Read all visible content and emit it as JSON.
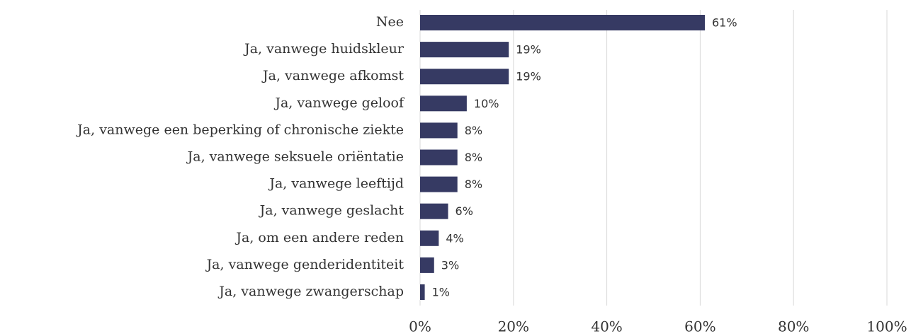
{
  "chart_data": {
    "type": "hbar",
    "categories": [
      "Nee",
      "Ja, vanwege huidskleur",
      "Ja, vanwege afkomst",
      "Ja, vanwege geloof",
      "Ja, vanwege een beperking of chronische ziekte",
      "Ja, vanwege seksuele oriëntatie",
      "Ja, vanwege leeftijd",
      "Ja, vanwege geslacht",
      "Ja, om een andere reden",
      "Ja, vanwege genderidentiteit",
      "Ja, vanwege zwangerschap"
    ],
    "values": [
      61,
      19,
      19,
      10,
      8,
      8,
      8,
      6,
      4,
      3,
      1
    ],
    "value_labels": [
      "61%",
      "19%",
      "19%",
      "10%",
      "8%",
      "8%",
      "8%",
      "6%",
      "4%",
      "3%",
      "1%"
    ],
    "color": "#363a63",
    "xlim": [
      0,
      100
    ],
    "xticks": [
      {
        "value": 0,
        "label": "0%"
      },
      {
        "value": 20,
        "label": "20%"
      },
      {
        "value": 40,
        "label": "40%"
      },
      {
        "value": 60,
        "label": "60%"
      },
      {
        "value": 80,
        "label": "80%"
      },
      {
        "value": 100,
        "label": "100%"
      }
    ],
    "grid": true
  }
}
